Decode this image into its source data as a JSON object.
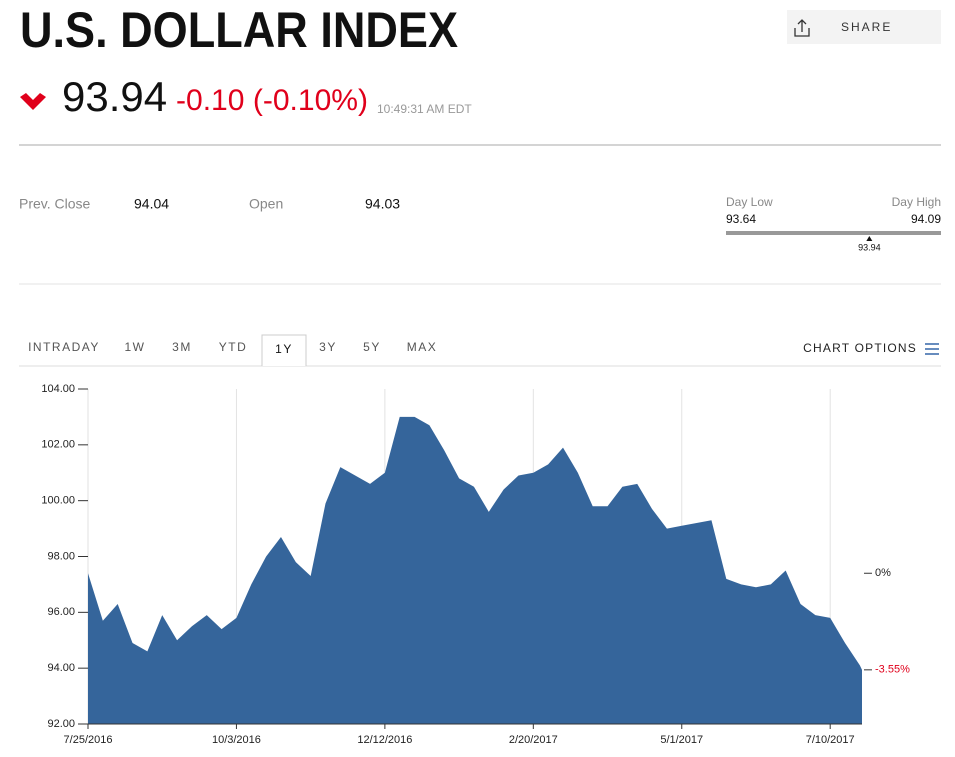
{
  "header": {
    "title": "U.S. DOLLAR INDEX",
    "share": "SHARE",
    "price": "93.94",
    "change": "-0.10 (-0.10%)",
    "time": "10:49:31 AM EDT"
  },
  "stats": {
    "prev_close_label": "Prev. Close",
    "prev_close": 94.04,
    "open_label": "Open",
    "open": 94.03,
    "day_low_label": "Day Low",
    "day_low": 93.64,
    "day_high_label": "Day High",
    "day_high": 94.09,
    "current": 93.94
  },
  "tabs": [
    "INTRADAY",
    "1W",
    "3M",
    "YTD",
    "1Y",
    "3Y",
    "5Y",
    "MAX"
  ],
  "active_tab": 4,
  "chart_options": "CHART OPTIONS",
  "chart_data": {
    "type": "area",
    "color": "#35659b",
    "x": [
      "2016-07-25",
      "2016-08-01",
      "2016-08-08",
      "2016-08-15",
      "2016-08-22",
      "2016-08-29",
      "2016-09-05",
      "2016-09-12",
      "2016-09-19",
      "2016-09-26",
      "2016-10-03",
      "2016-10-10",
      "2016-10-17",
      "2016-10-24",
      "2016-10-31",
      "2016-11-07",
      "2016-11-14",
      "2016-11-21",
      "2016-11-28",
      "2016-12-05",
      "2016-12-12",
      "2016-12-19",
      "2016-12-26",
      "2017-01-02",
      "2017-01-09",
      "2017-01-16",
      "2017-01-23",
      "2017-01-30",
      "2017-02-06",
      "2017-02-13",
      "2017-02-20",
      "2017-02-27",
      "2017-03-06",
      "2017-03-13",
      "2017-03-20",
      "2017-03-27",
      "2017-04-03",
      "2017-04-10",
      "2017-04-17",
      "2017-04-24",
      "2017-05-01",
      "2017-05-08",
      "2017-05-15",
      "2017-05-22",
      "2017-05-29",
      "2017-06-05",
      "2017-06-12",
      "2017-06-19",
      "2017-06-26",
      "2017-07-03",
      "2017-07-10",
      "2017-07-17",
      "2017-07-24",
      "2017-07-25"
    ],
    "values": [
      97.4,
      95.7,
      96.3,
      94.9,
      94.6,
      95.9,
      95.0,
      95.5,
      95.9,
      95.4,
      95.8,
      97.0,
      98.0,
      98.7,
      97.8,
      97.3,
      99.9,
      101.2,
      100.9,
      100.6,
      101.0,
      103.0,
      103.0,
      102.7,
      101.8,
      100.8,
      100.5,
      99.6,
      100.4,
      100.9,
      101.0,
      101.3,
      101.9,
      101.0,
      99.8,
      99.8,
      100.5,
      100.6,
      99.7,
      99.0,
      99.1,
      99.2,
      99.3,
      97.2,
      97.0,
      96.9,
      97.0,
      97.5,
      96.3,
      95.9,
      95.8,
      94.9,
      94.1,
      93.94
    ],
    "ylim": [
      92,
      104
    ],
    "yticks": [
      {
        "value": 92,
        "label": "92.00"
      },
      {
        "value": 94,
        "label": "94.00"
      },
      {
        "value": 96,
        "label": "96.00"
      },
      {
        "value": 98,
        "label": "98.00"
      },
      {
        "value": 100,
        "label": "100.00"
      },
      {
        "value": 102,
        "label": "102.00"
      },
      {
        "value": 104,
        "label": "104.00"
      }
    ],
    "xlim": [
      "2016-07-25",
      "2017-07-25"
    ],
    "xticks": [
      {
        "value": "2016-07-25",
        "label": "7/25/2016"
      },
      {
        "value": "2016-10-03",
        "label": "10/3/2016"
      },
      {
        "value": "2016-12-12",
        "label": "12/12/2016"
      },
      {
        "value": "2017-02-20",
        "label": "2/20/2017"
      },
      {
        "value": "2017-05-01",
        "label": "5/1/2017"
      },
      {
        "value": "2017-07-10",
        "label": "7/10/2017"
      }
    ],
    "grid": true,
    "annotations": [
      {
        "label": "0%",
        "value": 97.4,
        "color": "#222222"
      },
      {
        "label": "-3.55%",
        "value": 93.94,
        "color": "#e0001b"
      }
    ]
  }
}
